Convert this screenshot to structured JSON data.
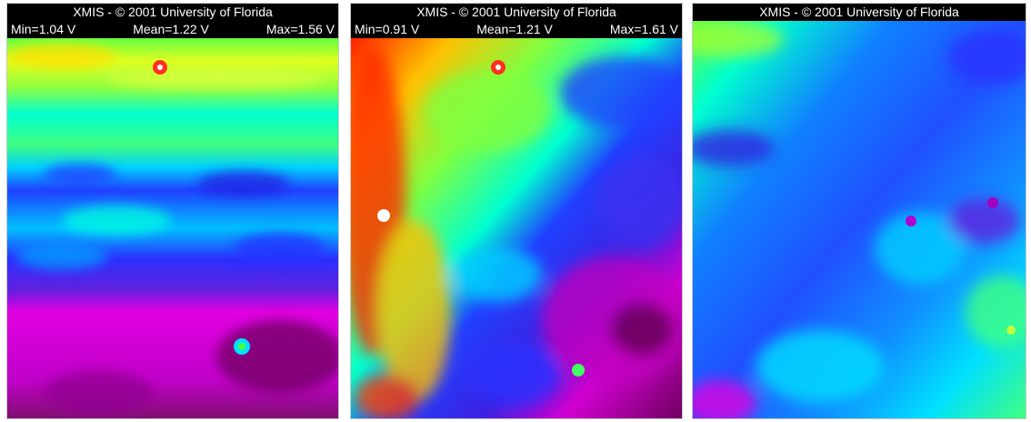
{
  "panels": [
    {
      "title": "XMIS - © 2001 University of Florida",
      "min_label": "Min=1.04 V",
      "mean_label": "Mean=1.22 V",
      "max_label": "Max=1.56 V"
    },
    {
      "title": "XMIS - © 2001 University of Florida",
      "min_label": "Min=0.91 V",
      "mean_label": "Mean=1.21 V",
      "max_label": "Max=1.61 V"
    },
    {
      "title": "XMIS - © 2001 University of Florida"
    }
  ],
  "colors": {
    "background": "#000000",
    "header_text": "#ffffff",
    "palette": [
      "#ff0000",
      "#ffb000",
      "#f0ff00",
      "#40ff40",
      "#00ffe0",
      "#00a0ff",
      "#2030ff",
      "#5010c0",
      "#e000e0",
      "#600050"
    ]
  }
}
